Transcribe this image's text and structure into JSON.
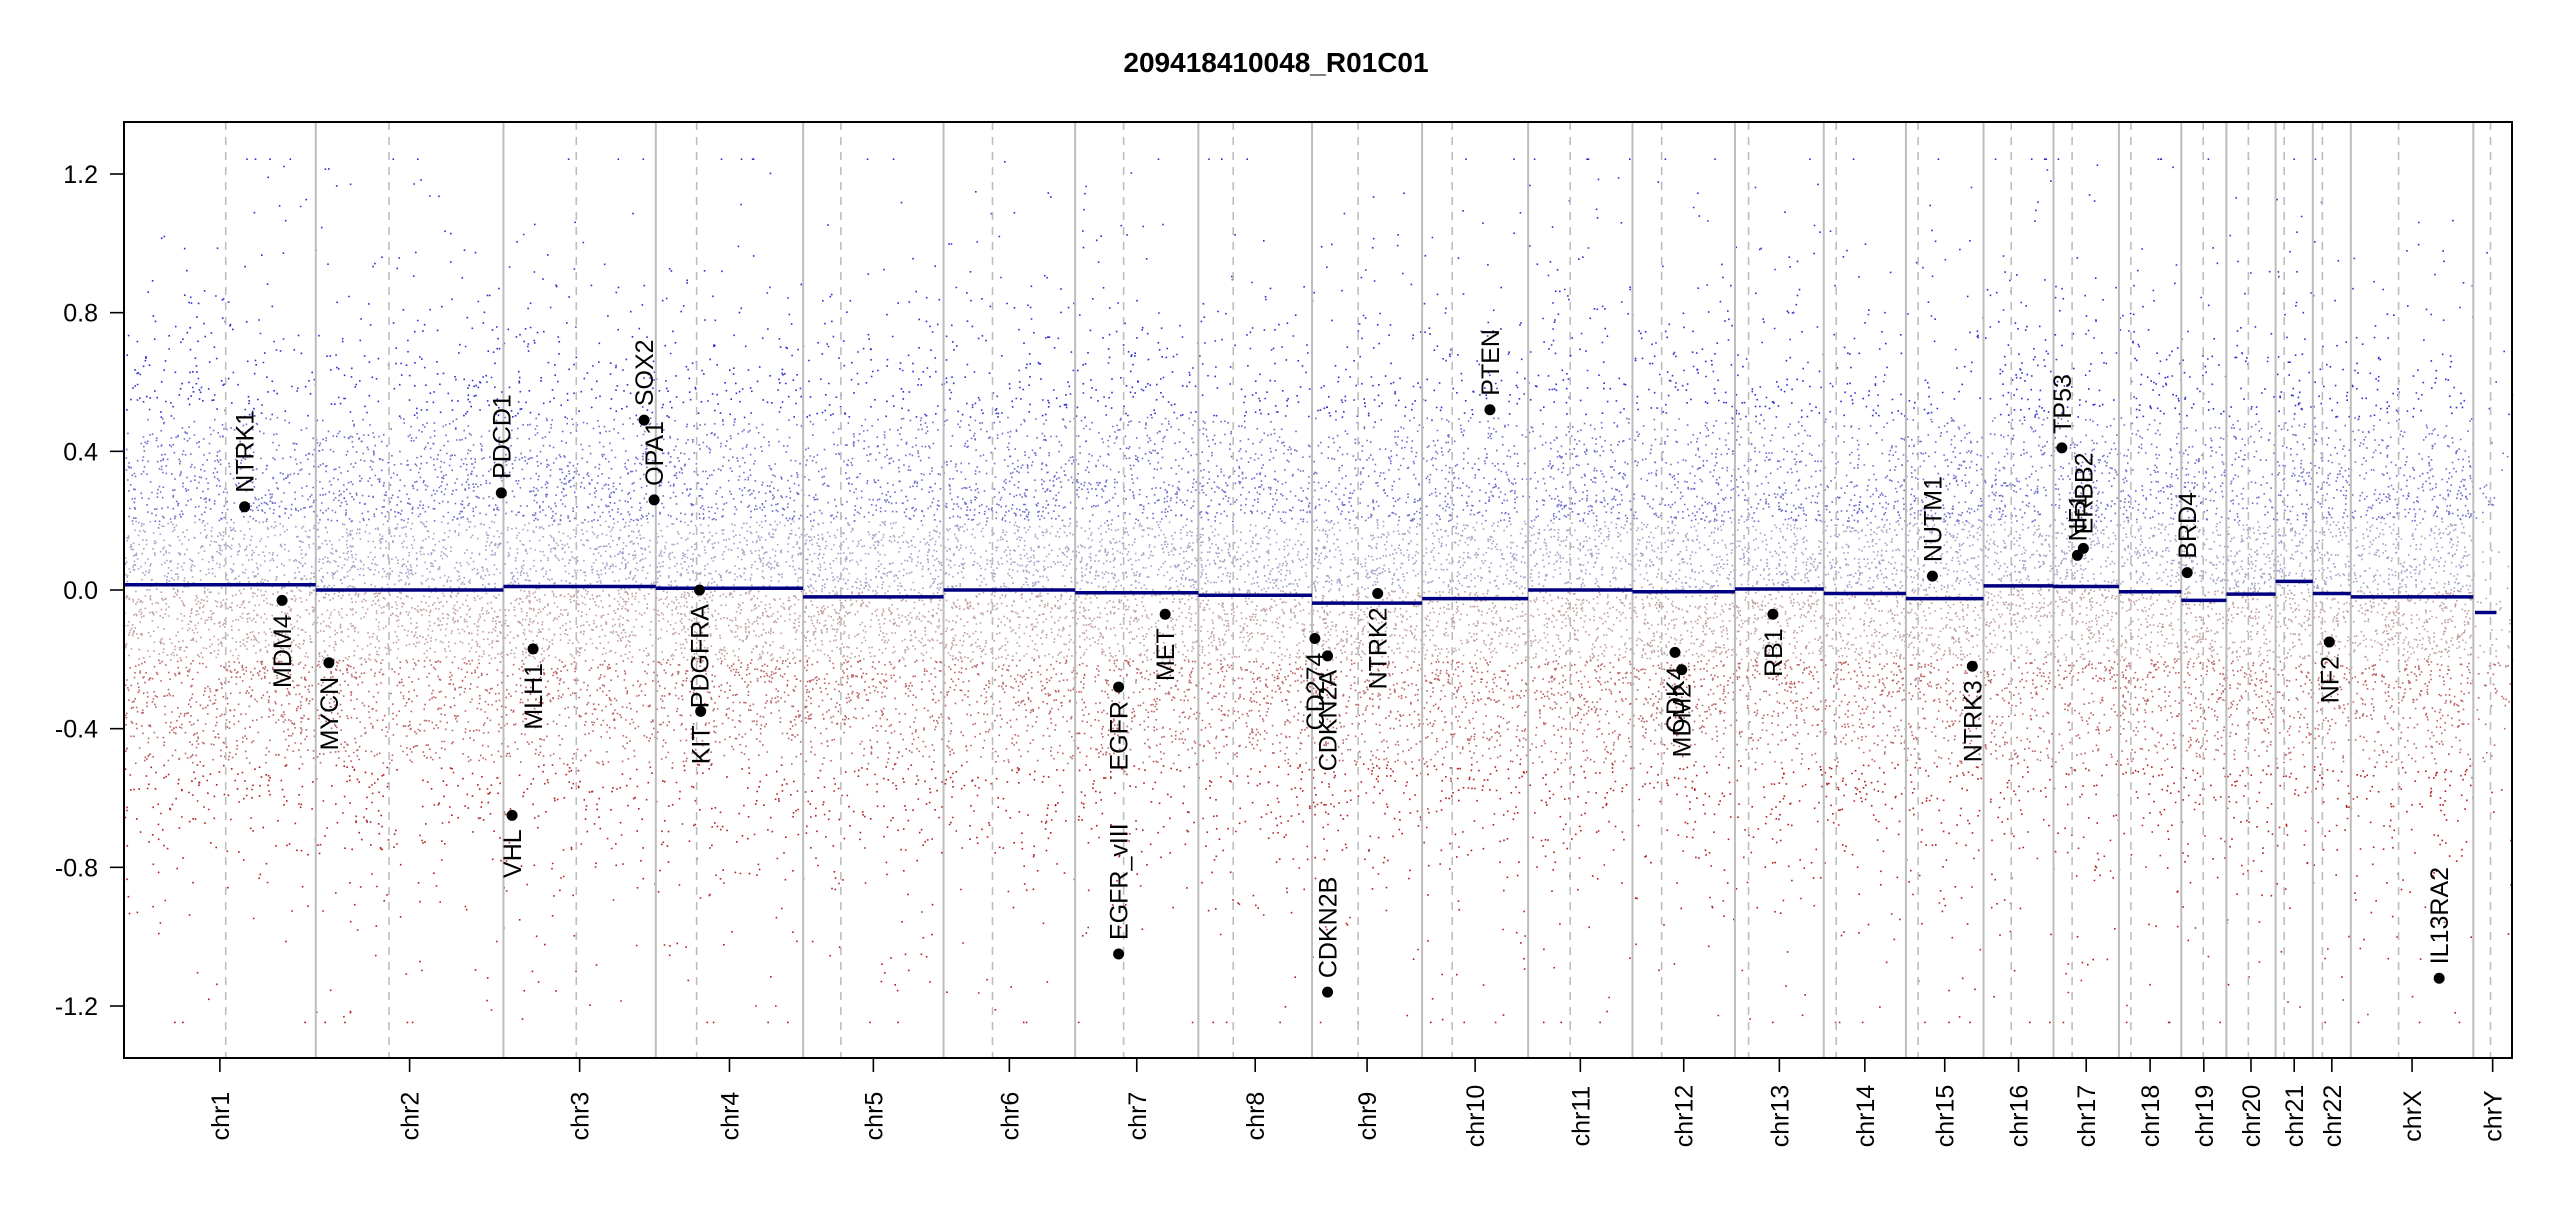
{
  "chart_data": {
    "type": "scatter",
    "title": "209418410048_R01C01",
    "xlabel": "",
    "ylabel": "",
    "ylim": [
      -1.35,
      1.35
    ],
    "yticks": [
      -1.2,
      -0.8,
      -0.4,
      0.0,
      0.4,
      0.8,
      1.2
    ],
    "ytick_labels": [
      "-1.2",
      "-0.8",
      "-0.4",
      "0.0",
      "0.4",
      "0.8",
      "1.2"
    ],
    "grid": false,
    "x_span": [
      0,
      1000
    ],
    "colors": {
      "gain": "#2e2ecc",
      "loss": "#b01e1e",
      "segment": "#000080",
      "gene": "#000000",
      "boundary": "#bdbdbd",
      "frame": "#000000"
    },
    "chromosomes": [
      {
        "name": "chr1",
        "start": 0,
        "end": 80.3,
        "centromere": 42.6,
        "segments": [
          [
            0,
            80.3,
            0.015
          ]
        ]
      },
      {
        "name": "chr2",
        "start": 80.3,
        "end": 158.9,
        "centromere": 111.0,
        "segments": [
          [
            80.3,
            158.9,
            0.0
          ]
        ]
      },
      {
        "name": "chr3",
        "start": 158.9,
        "end": 222.7,
        "centromere": 189.4,
        "segments": [
          [
            158.9,
            222.7,
            0.01
          ]
        ]
      },
      {
        "name": "chr4",
        "start": 222.7,
        "end": 284.4,
        "centromere": 239.8,
        "segments": [
          [
            222.7,
            284.4,
            0.005
          ]
        ]
      },
      {
        "name": "chr5",
        "start": 284.4,
        "end": 343.2,
        "centromere": 300.2,
        "segments": [
          [
            284.4,
            343.2,
            -0.02
          ]
        ]
      },
      {
        "name": "chr6",
        "start": 343.2,
        "end": 398.3,
        "centromere": 363.7,
        "segments": [
          [
            343.2,
            398.3,
            0.0
          ]
        ]
      },
      {
        "name": "chr7",
        "start": 398.3,
        "end": 449.9,
        "centromere": 418.6,
        "segments": [
          [
            398.3,
            449.9,
            -0.008
          ]
        ]
      },
      {
        "name": "chr8",
        "start": 449.9,
        "end": 497.5,
        "centromere": 464.5,
        "segments": [
          [
            449.9,
            497.5,
            -0.015
          ]
        ]
      },
      {
        "name": "chr9",
        "start": 497.5,
        "end": 543.6,
        "centromere": 516.8,
        "segments": [
          [
            497.5,
            543.6,
            -0.038
          ]
        ]
      },
      {
        "name": "chr10",
        "start": 543.6,
        "end": 588.0,
        "centromere": 556.2,
        "segments": [
          [
            543.6,
            588.0,
            -0.025
          ]
        ]
      },
      {
        "name": "chr11",
        "start": 588.0,
        "end": 631.7,
        "centromere": 605.6,
        "segments": [
          [
            588.0,
            631.7,
            0.0
          ]
        ]
      },
      {
        "name": "chr12",
        "start": 631.7,
        "end": 674.6,
        "centromere": 643.9,
        "segments": [
          [
            631.7,
            674.6,
            -0.005
          ]
        ]
      },
      {
        "name": "chr13",
        "start": 674.6,
        "end": 711.8,
        "centromere": 680.3,
        "segments": [
          [
            674.6,
            711.8,
            0.003
          ]
        ]
      },
      {
        "name": "chr14",
        "start": 711.8,
        "end": 746.2,
        "centromere": 717.0,
        "segments": [
          [
            711.8,
            746.2,
            -0.01
          ]
        ]
      },
      {
        "name": "chr15",
        "start": 746.2,
        "end": 778.7,
        "centromere": 751.3,
        "segments": [
          [
            746.2,
            778.7,
            -0.025
          ]
        ]
      },
      {
        "name": "chr16",
        "start": 778.7,
        "end": 808.0,
        "centromere": 790.3,
        "segments": [
          [
            778.7,
            808.0,
            0.012
          ]
        ]
      },
      {
        "name": "chr17",
        "start": 808.0,
        "end": 835.4,
        "centromere": 815.8,
        "segments": [
          [
            808.0,
            835.4,
            0.01
          ]
        ]
      },
      {
        "name": "chr18",
        "start": 835.4,
        "end": 861.5,
        "centromere": 840.4,
        "segments": [
          [
            835.4,
            861.5,
            -0.005
          ]
        ]
      },
      {
        "name": "chr19",
        "start": 861.5,
        "end": 880.4,
        "centromere": 870.7,
        "segments": [
          [
            861.5,
            880.4,
            -0.03
          ]
        ]
      },
      {
        "name": "chr20",
        "start": 880.4,
        "end": 901.0,
        "centromere": 889.6,
        "segments": [
          [
            880.4,
            901.0,
            -0.012
          ]
        ]
      },
      {
        "name": "chr21",
        "start": 901.0,
        "end": 916.6,
        "centromere": 904.6,
        "segments": [
          [
            901.0,
            916.6,
            0.025
          ]
        ]
      },
      {
        "name": "chr22",
        "start": 916.6,
        "end": 932.5,
        "centromere": 920.6,
        "segments": [
          [
            916.6,
            932.5,
            -0.01
          ]
        ]
      },
      {
        "name": "chrX",
        "start": 932.5,
        "end": 983.8,
        "centromere": 952.5,
        "segments": [
          [
            932.5,
            983.8,
            -0.02
          ]
        ]
      },
      {
        "name": "chrY",
        "start": 983.8,
        "end": 1000,
        "centromere": 991.0,
        "segments": [
          [
            984.5,
            993.5,
            -0.065
          ]
        ]
      }
    ],
    "genes": [
      {
        "name": "NTRK1",
        "x": 50.5,
        "y": 0.24,
        "label_side": "up"
      },
      {
        "name": "MDM4",
        "x": 66.2,
        "y": -0.03,
        "label_side": "down"
      },
      {
        "name": "MYCN",
        "x": 85.8,
        "y": -0.21,
        "label_side": "down"
      },
      {
        "name": "PDCD1",
        "x": 158.0,
        "y": 0.28,
        "label_side": "up"
      },
      {
        "name": "VHL",
        "x": 162.5,
        "y": -0.65,
        "label_side": "down"
      },
      {
        "name": "MLH1",
        "x": 171.3,
        "y": -0.17,
        "label_side": "down"
      },
      {
        "name": "SOX2",
        "x": 217.8,
        "y": 0.49,
        "label_side": "up"
      },
      {
        "name": "OPA1",
        "x": 222.0,
        "y": 0.26,
        "label_side": "up"
      },
      {
        "name": "PDGFRA",
        "x": 241.0,
        "y": 0.0,
        "label_side": "down"
      },
      {
        "name": "KIT",
        "x": 241.5,
        "y": -0.35,
        "label_side": "down"
      },
      {
        "name": "EGFR",
        "x": 416.5,
        "y": -0.28,
        "label_side": "down"
      },
      {
        "name": "EGFR_vIII",
        "x": 416.5,
        "y": -1.05,
        "label_side": "up"
      },
      {
        "name": "MET",
        "x": 436.0,
        "y": -0.07,
        "label_side": "down"
      },
      {
        "name": "CD274",
        "x": 498.7,
        "y": -0.14,
        "label_side": "down"
      },
      {
        "name": "CDKN2A",
        "x": 504.0,
        "y": -0.19,
        "label_side": "down"
      },
      {
        "name": "CDKN2B",
        "x": 504.0,
        "y": -1.16,
        "label_side": "up"
      },
      {
        "name": "NTRK2",
        "x": 525.0,
        "y": -0.01,
        "label_side": "down"
      },
      {
        "name": "PTEN",
        "x": 572.0,
        "y": 0.52,
        "label_side": "up"
      },
      {
        "name": "CDK4",
        "x": 649.5,
        "y": -0.18,
        "label_side": "down"
      },
      {
        "name": "MDM2",
        "x": 652.3,
        "y": -0.23,
        "label_side": "down"
      },
      {
        "name": "RB1",
        "x": 690.5,
        "y": -0.07,
        "label_side": "down"
      },
      {
        "name": "NUTM1",
        "x": 757.3,
        "y": 0.04,
        "label_side": "up"
      },
      {
        "name": "NTRK3",
        "x": 774.0,
        "y": -0.22,
        "label_side": "down"
      },
      {
        "name": "TP53",
        "x": 811.5,
        "y": 0.41,
        "label_side": "up"
      },
      {
        "name": "NF1",
        "x": 818.0,
        "y": 0.1,
        "label_side": "up"
      },
      {
        "name": "ERBB2",
        "x": 820.5,
        "y": 0.12,
        "label_side": "up"
      },
      {
        "name": "BRD4",
        "x": 864.0,
        "y": 0.05,
        "label_side": "up"
      },
      {
        "name": "NF2",
        "x": 923.5,
        "y": -0.15,
        "label_side": "down"
      },
      {
        "name": "IL13RA2",
        "x": 969.5,
        "y": -1.12,
        "label_side": "up"
      }
    ]
  }
}
